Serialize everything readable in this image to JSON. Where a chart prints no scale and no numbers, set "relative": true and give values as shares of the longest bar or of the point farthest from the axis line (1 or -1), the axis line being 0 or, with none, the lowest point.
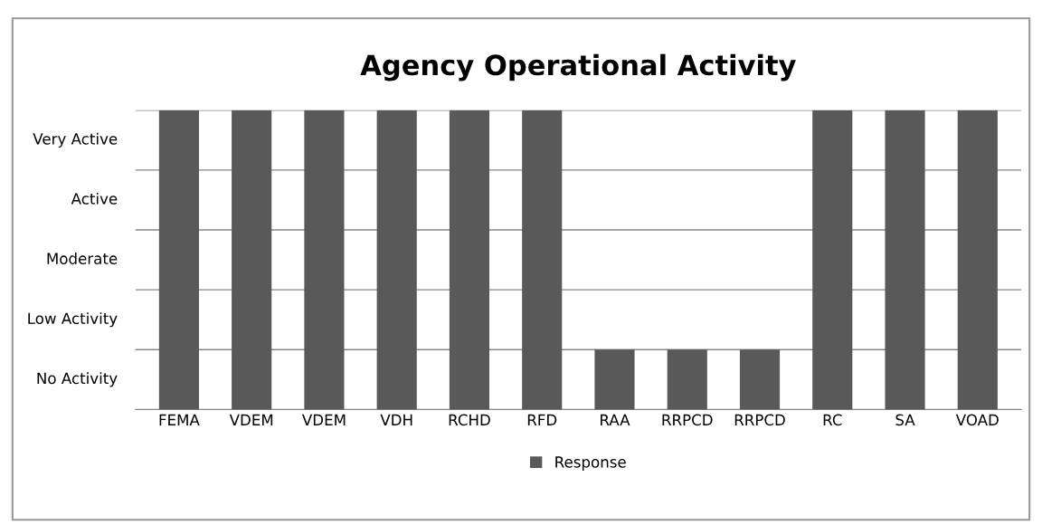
{
  "chart_data": {
    "type": "bar",
    "title": "Agency Operational Activity",
    "relative": true,
    "categories": [
      "FEMA",
      "VDEM",
      "VDEM",
      "VDH",
      "RCHD",
      "RFD",
      "RAA",
      "RRPCD",
      "RRPCD",
      "RC",
      "SA",
      "VOAD"
    ],
    "series": [
      {
        "name": "Response",
        "color": "#595959",
        "values": [
          1,
          1,
          1,
          1,
          1,
          1,
          0.2,
          0.2,
          0.2,
          1,
          1,
          1
        ]
      }
    ],
    "annotations": [
      "No Activity",
      "Low Activity",
      "Moderate",
      "Active",
      "Very Active"
    ],
    "grid": "y",
    "legend": "bottom"
  }
}
